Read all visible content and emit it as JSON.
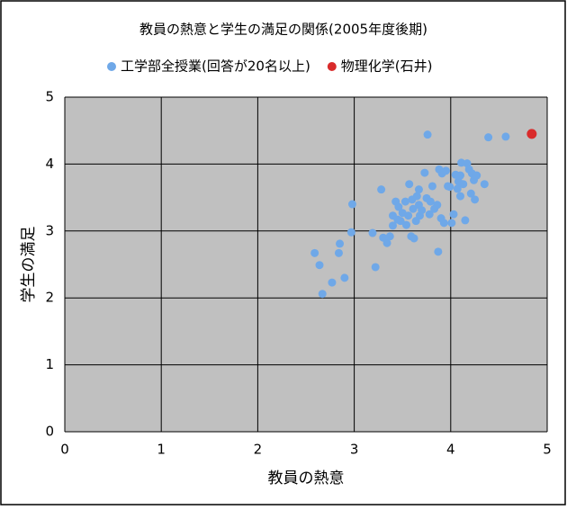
{
  "chart_data": {
    "type": "scatter",
    "title": "教員の熱意と学生の満足の関係(2005年度後期)",
    "x_label": "教員の熱意",
    "y_label": "学生の満足",
    "xlim": [
      0,
      5
    ],
    "ylim": [
      0,
      5
    ],
    "xticks": [
      0,
      1,
      2,
      3,
      4,
      5
    ],
    "yticks": [
      0,
      1,
      2,
      3,
      4,
      5
    ],
    "grid": true,
    "legend": "top",
    "series": [
      {
        "name": "工学部全授業(回答が20名以上)",
        "color": "#6fa8e8",
        "x": [
          2.59,
          2.64,
          2.67,
          2.77,
          2.85,
          2.84,
          2.9,
          2.97,
          2.98,
          3.19,
          3.22,
          3.28,
          3.3,
          3.34,
          3.37,
          3.4,
          3.43,
          3.46,
          3.48,
          3.5,
          3.53,
          3.54,
          3.56,
          3.57,
          3.59,
          3.61,
          3.62,
          3.64,
          3.65,
          3.67,
          3.68,
          3.7,
          3.73,
          3.76,
          3.75,
          3.78,
          3.81,
          3.83,
          3.86,
          3.87,
          3.88,
          3.9,
          3.91,
          3.93,
          3.95,
          3.97,
          4.01,
          4.03,
          4.05,
          4.07,
          4.08,
          4.1,
          4.11,
          4.13,
          4.15,
          4.17,
          4.19,
          4.21,
          4.22,
          4.24,
          4.25,
          4.27,
          4.35,
          4.39,
          4.57,
          3.4,
          3.45,
          3.6,
          3.67,
          3.79,
          3.99,
          4.1
        ],
        "y": [
          2.67,
          2.49,
          2.06,
          2.23,
          2.81,
          2.67,
          2.3,
          2.98,
          3.4,
          2.97,
          2.46,
          3.62,
          2.9,
          2.82,
          2.92,
          3.23,
          3.44,
          3.36,
          3.15,
          3.27,
          3.44,
          3.09,
          3.23,
          3.7,
          2.92,
          3.33,
          2.89,
          3.15,
          3.52,
          3.39,
          3.23,
          3.31,
          3.87,
          4.44,
          3.49,
          3.25,
          3.67,
          3.33,
          3.39,
          2.69,
          3.92,
          3.19,
          3.86,
          3.12,
          3.9,
          3.67,
          3.12,
          3.25,
          3.84,
          3.63,
          3.74,
          3.83,
          4.02,
          3.7,
          3.16,
          4.01,
          3.92,
          3.56,
          3.86,
          3.76,
          3.47,
          3.83,
          3.7,
          4.4,
          4.41,
          3.08,
          3.17,
          3.47,
          3.62,
          3.44,
          3.66,
          3.52
        ]
      },
      {
        "name": "物理化学(石井)",
        "color": "#d92b2b",
        "x": [
          4.84
        ],
        "y": [
          4.45
        ]
      }
    ]
  }
}
